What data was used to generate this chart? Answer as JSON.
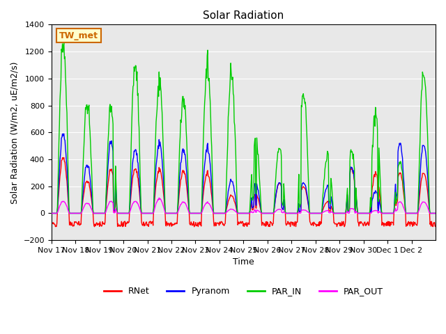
{
  "title": "Solar Radiation",
  "ylabel": "Solar Radiation (W/m2, uE/m2/s)",
  "xlabel": "Time",
  "ylim": [
    -200,
    1400
  ],
  "yticks": [
    -200,
    0,
    200,
    400,
    600,
    800,
    1000,
    1200,
    1400
  ],
  "xtick_labels": [
    "Nov 17",
    "Nov 18",
    "Nov 19",
    "Nov 20",
    "Nov 21",
    "Nov 22",
    "Nov 23",
    "Nov 24",
    "Nov 25",
    "Nov 26",
    "Nov 27",
    "Nov 28",
    "Nov 29",
    "Nov 30",
    "Dec 1",
    "Dec 2"
  ],
  "station_label": "TW_met",
  "station_label_color": "#cc6600",
  "station_label_bg": "#ffffcc",
  "series_colors": {
    "RNet": "#ff0000",
    "Pyranom": "#0000ff",
    "PAR_IN": "#00cc00",
    "PAR_OUT": "#ff00ff"
  },
  "background_color": "#e8e8e8",
  "grid_color": "#ffffff",
  "linewidth": 1.0,
  "n_days": 16,
  "n_per_day": 48,
  "par_peaks": [
    1280,
    810,
    800,
    1120,
    1000,
    870,
    1110,
    1020,
    550,
    490,
    900,
    430,
    460,
    730,
    380,
    1040
  ],
  "pyranom_peaks": [
    600,
    360,
    540,
    480,
    530,
    480,
    490,
    240,
    220,
    230,
    230,
    200,
    340,
    160,
    520,
    510
  ],
  "rnet_peaks": [
    420,
    240,
    330,
    335,
    330,
    320,
    300,
    130,
    140,
    225,
    200,
    85,
    330,
    295,
    300,
    300
  ],
  "par_out_peaks": [
    90,
    75,
    90,
    90,
    110,
    85,
    80,
    30,
    25,
    30,
    25,
    20,
    35,
    20,
    85,
    85
  ]
}
